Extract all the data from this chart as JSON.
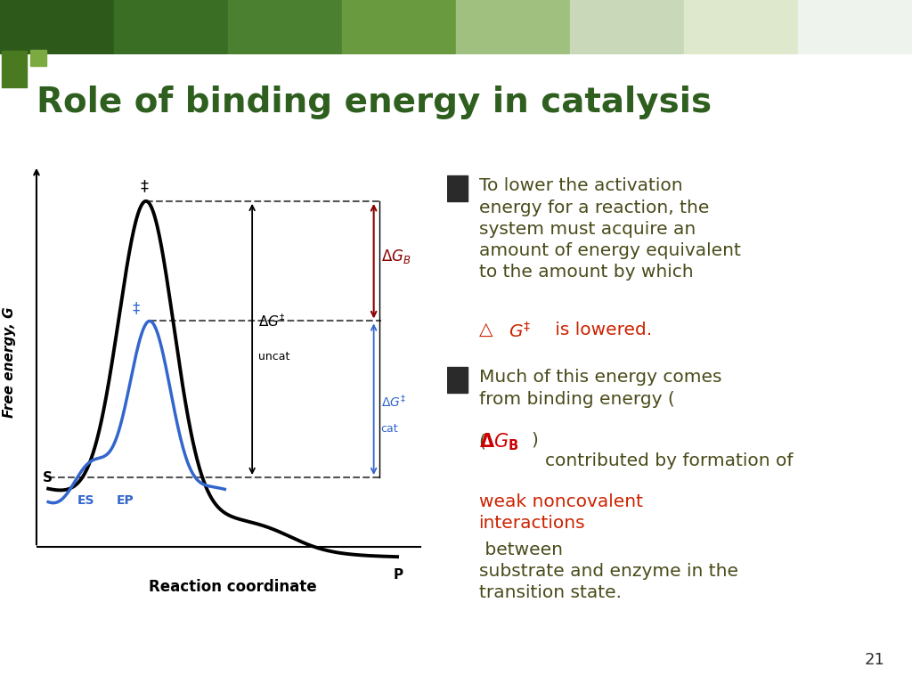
{
  "title": "Role of binding energy in catalysis",
  "title_color": "#2F5F1F",
  "title_fontsize": 28,
  "bg_color": "#FFFFFF",
  "diagram_bg": "#FFFFF0",
  "diagram_bg2": "#F5F0C8",
  "header_bar_colors": [
    "#4a7a2a",
    "#5a8a3a",
    "#6a9a4a",
    "#7aaa5a",
    "#8aba6a",
    "#aacaaa",
    "#ccddcc",
    "#ddeedd"
  ],
  "slide_number": "21",
  "bullet1_black": "To lower the activation\nenergy for a reaction, the\nsystem must acquire an\namount of energy equivalent\nto the amount by which",
  "bullet1_red": "△G‡ is lowered.",
  "bullet2_black1": "Much of this energy comes\nfrom binding energy (",
  "bullet2_red_bold": "Δ",
  "bullet2_italic": "G",
  "bullet2_sub": "B",
  "bullet2_black2": ")\ncontributed by formation of",
  "bullet2_red2": "weak noncovalent\ninteractions",
  "bullet2_black3": " between\nsubstrate and enzyme in the\ntransition state.",
  "diagram_xlabel": "Reaction coordinate",
  "diagram_ylabel": "Free energy, G"
}
